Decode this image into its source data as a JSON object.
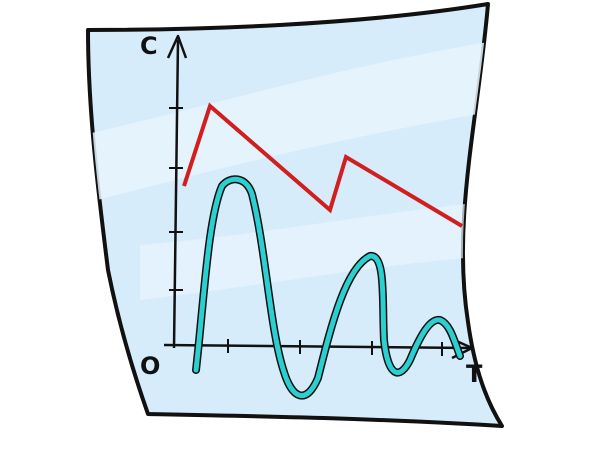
{
  "figure": {
    "y_axis_letter": "C",
    "x_axis_letter": "T",
    "origin_letter": "O"
  },
  "colors": {
    "paper": "#d6ecfb",
    "paper_light": "#e8f5fd",
    "outline": "#111111",
    "red_line": "#d11f1f",
    "cyan_curve": "#2bcfcf"
  },
  "icons": [
    "paper-sheet-icon",
    "graph-icon"
  ]
}
